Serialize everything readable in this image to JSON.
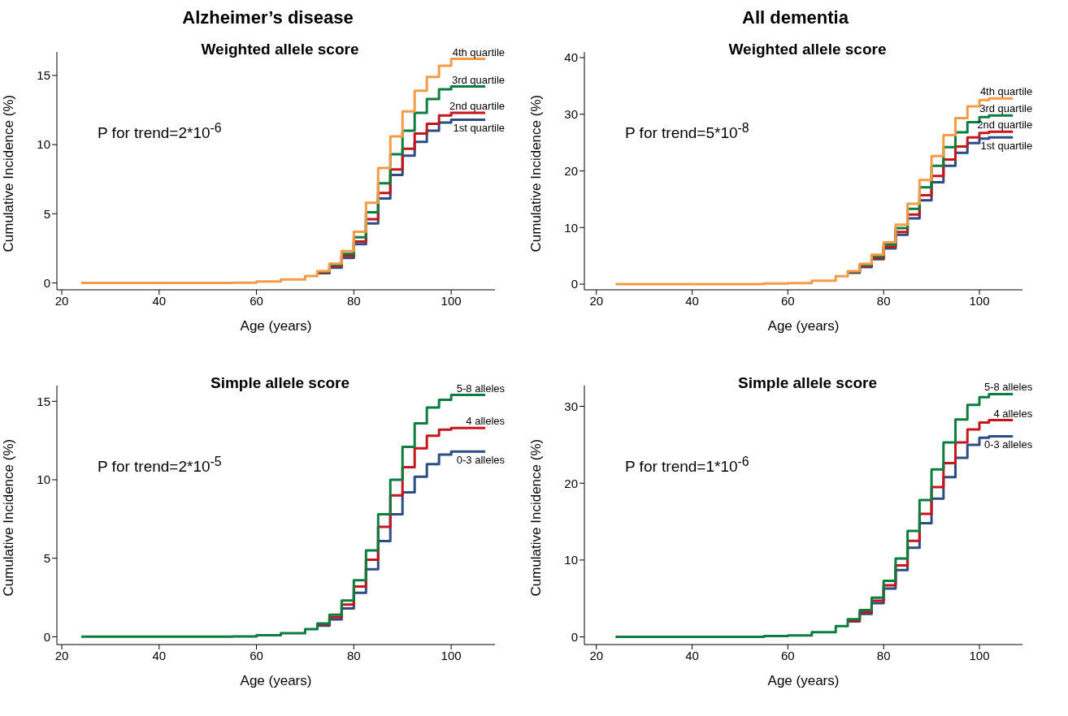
{
  "chart_data": [
    {
      "type": "step",
      "title": "Alzheimer’s disease",
      "subtitle": "Weighted allele score",
      "xlabel": "Age (years)",
      "ylabel": "Cumulative Incidence (%)",
      "annotations": [
        "P for trend=2*10$^{-6}$"
      ],
      "x": [
        24,
        50,
        55,
        60,
        65,
        70,
        72.5,
        75,
        77.5,
        80,
        82.5,
        85,
        87.5,
        90,
        92.5,
        95,
        97.5,
        100,
        102,
        107
      ],
      "xlim": [
        19,
        109
      ],
      "xticks": [
        20,
        40,
        60,
        80,
        100
      ],
      "ylim": [
        -0.5,
        16.7
      ],
      "yticks": [
        0,
        5,
        10,
        15
      ],
      "grid": false,
      "legend": false,
      "series": [
        {
          "name": "1st quartile",
          "color": "#2b4d83",
          "values": [
            null,
            null,
            null,
            null,
            null,
            null,
            0.7,
            1.1,
            1.8,
            2.8,
            4.3,
            6.1,
            7.8,
            9.2,
            10.2,
            11.0,
            11.6,
            11.8,
            11.8,
            11.8
          ]
        },
        {
          "name": "2nd quartile",
          "color": "#c4161c",
          "values": [
            null,
            null,
            null,
            null,
            null,
            null,
            0.75,
            1.2,
            1.95,
            3.0,
            4.6,
            6.5,
            8.2,
            9.7,
            10.8,
            11.5,
            12.1,
            12.3,
            12.3,
            12.3
          ]
        },
        {
          "name": "3rd quartile",
          "color": "#0b7d3e",
          "values": [
            null,
            null,
            null,
            null,
            null,
            null,
            0.8,
            1.3,
            2.1,
            3.3,
            5.1,
            7.2,
            9.3,
            11.0,
            12.3,
            13.3,
            14.0,
            14.2,
            14.2,
            14.2
          ]
        },
        {
          "name": "4th quartile",
          "color": "#f59a45",
          "values": [
            0,
            0,
            0.02,
            0.1,
            0.25,
            0.5,
            0.85,
            1.4,
            2.3,
            3.7,
            5.8,
            8.3,
            10.6,
            12.4,
            13.9,
            14.9,
            15.7,
            16.2,
            16.2,
            16.2
          ]
        }
      ]
    },
    {
      "type": "step",
      "title": "All dementia",
      "subtitle": "Weighted allele score",
      "xlabel": "Age (years)",
      "ylabel": "Cumulative Incidence (%)",
      "annotations": [
        "P for trend=5*10$^{-8}$"
      ],
      "x": [
        24,
        50,
        55,
        60,
        65,
        70,
        72.5,
        75,
        77.5,
        80,
        82.5,
        85,
        87.5,
        90,
        92.5,
        95,
        97.5,
        100,
        102,
        107
      ],
      "xlim": [
        17.5,
        109
      ],
      "xticks": [
        20,
        40,
        60,
        80,
        100
      ],
      "ylim": [
        -1,
        41
      ],
      "yticks": [
        0,
        10,
        20,
        30,
        40
      ],
      "grid": false,
      "legend": false,
      "series": [
        {
          "name": "1st quartile",
          "color": "#2b4d83",
          "values": [
            null,
            null,
            null,
            null,
            null,
            null,
            2.0,
            3.0,
            4.4,
            6.3,
            8.7,
            11.6,
            14.8,
            18.0,
            20.9,
            23.2,
            24.9,
            25.7,
            25.9,
            25.9
          ]
        },
        {
          "name": "2nd quartile",
          "color": "#c4161c",
          "values": [
            null,
            null,
            null,
            null,
            null,
            null,
            2.1,
            3.2,
            4.6,
            6.6,
            9.2,
            12.3,
            15.7,
            19.1,
            22.0,
            24.3,
            25.9,
            26.7,
            26.9,
            26.9
          ]
        },
        {
          "name": "3rd quartile",
          "color": "#0b7d3e",
          "values": [
            null,
            null,
            null,
            null,
            null,
            null,
            2.2,
            3.4,
            4.9,
            7.0,
            9.9,
            13.3,
            17.1,
            20.9,
            24.2,
            26.8,
            28.6,
            29.5,
            29.8,
            29.8
          ]
        },
        {
          "name": "4th quartile",
          "color": "#f59a45",
          "values": [
            0,
            0,
            0.1,
            0.2,
            0.6,
            1.4,
            2.3,
            3.6,
            5.2,
            7.4,
            10.5,
            14.2,
            18.4,
            22.6,
            26.3,
            29.3,
            31.4,
            32.5,
            32.8,
            32.8
          ]
        }
      ]
    },
    {
      "type": "step",
      "subtitle": "Simple allele score",
      "xlabel": "Age (years)",
      "ylabel": "Cumulative Incidence (%)",
      "annotations": [
        "P for trend=2*10$^{-5}$"
      ],
      "x": [
        24,
        50,
        55,
        60,
        65,
        70,
        72.5,
        75,
        77.5,
        80,
        82.5,
        85,
        87.5,
        90,
        92.5,
        95,
        97.5,
        100,
        102,
        107
      ],
      "xlim": [
        19,
        109
      ],
      "xticks": [
        20,
        40,
        60,
        80,
        100
      ],
      "ylim": [
        -0.5,
        16
      ],
      "yticks": [
        0,
        5,
        10,
        15
      ],
      "grid": false,
      "legend": false,
      "series": [
        {
          "name": "0-3 alleles",
          "color": "#2b4d83",
          "values": [
            null,
            null,
            null,
            null,
            null,
            null,
            0.7,
            1.1,
            1.8,
            2.8,
            4.3,
            6.1,
            7.8,
            9.2,
            10.2,
            11.0,
            11.6,
            11.8,
            11.8,
            11.8
          ]
        },
        {
          "name": "4 alleles",
          "color": "#c4161c",
          "values": [
            null,
            null,
            null,
            null,
            null,
            null,
            0.78,
            1.25,
            2.05,
            3.2,
            4.9,
            7.0,
            9.0,
            10.8,
            12.0,
            12.8,
            13.2,
            13.3,
            13.3,
            13.3
          ]
        },
        {
          "name": "5-8 alleles",
          "color": "#0b7d3e",
          "values": [
            0,
            0,
            0.02,
            0.1,
            0.23,
            0.48,
            0.85,
            1.4,
            2.3,
            3.6,
            5.5,
            7.8,
            10.0,
            12.1,
            13.6,
            14.6,
            15.1,
            15.4,
            15.4,
            15.4
          ]
        }
      ]
    },
    {
      "type": "step",
      "subtitle": "Simple allele score",
      "xlabel": "Age (years)",
      "ylabel": "Cumulative Incidence (%)",
      "annotations": [
        "P for trend=1*10$^{-6}$"
      ],
      "x": [
        24,
        50,
        55,
        60,
        65,
        70,
        72.5,
        75,
        77.5,
        80,
        82.5,
        85,
        87.5,
        90,
        92.5,
        95,
        97.5,
        100,
        102,
        107
      ],
      "xlim": [
        17.5,
        109
      ],
      "xticks": [
        20,
        40,
        60,
        80,
        100
      ],
      "ylim": [
        -1,
        32.7
      ],
      "yticks": [
        0,
        10,
        20,
        30
      ],
      "grid": false,
      "legend": false,
      "series": [
        {
          "name": "0-3 alleles",
          "color": "#2b4d83",
          "values": [
            null,
            null,
            null,
            null,
            null,
            null,
            2.0,
            3.0,
            4.4,
            6.3,
            8.7,
            11.6,
            14.8,
            18.0,
            20.8,
            23.3,
            25.0,
            25.9,
            26.1,
            26.1
          ]
        },
        {
          "name": "4 alleles",
          "color": "#c4161c",
          "values": [
            null,
            null,
            null,
            null,
            null,
            null,
            2.1,
            3.2,
            4.7,
            6.7,
            9.3,
            12.5,
            16.0,
            19.5,
            22.6,
            25.3,
            27.0,
            27.9,
            28.2,
            28.2
          ]
        },
        {
          "name": "5-8 alleles",
          "color": "#0b7d3e",
          "values": [
            0,
            0,
            0.1,
            0.2,
            0.6,
            1.4,
            2.3,
            3.5,
            5.1,
            7.3,
            10.2,
            13.8,
            17.8,
            21.8,
            25.3,
            28.3,
            30.2,
            31.2,
            31.6,
            31.6
          ]
        }
      ]
    }
  ]
}
